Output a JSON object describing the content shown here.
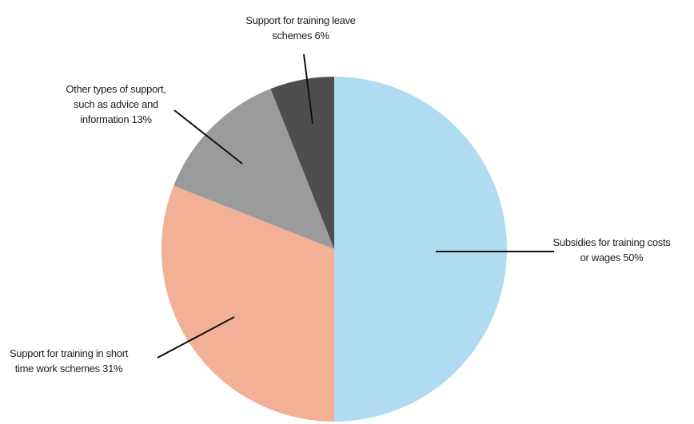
{
  "chart_data": {
    "type": "pie",
    "categories": [
      "Subsidies for training costs or wages",
      "Support for training in short time work schemes",
      "Other types of support, such as advice and information",
      "Support for training leave schemes"
    ],
    "values": [
      50,
      31,
      13,
      6
    ],
    "value_labels": [
      "50%",
      "31%",
      "13%",
      "6%"
    ],
    "colors": [
      "#afdcf0",
      "#f2b097",
      "#9b9b9b",
      "#4e4e4e"
    ]
  }
}
